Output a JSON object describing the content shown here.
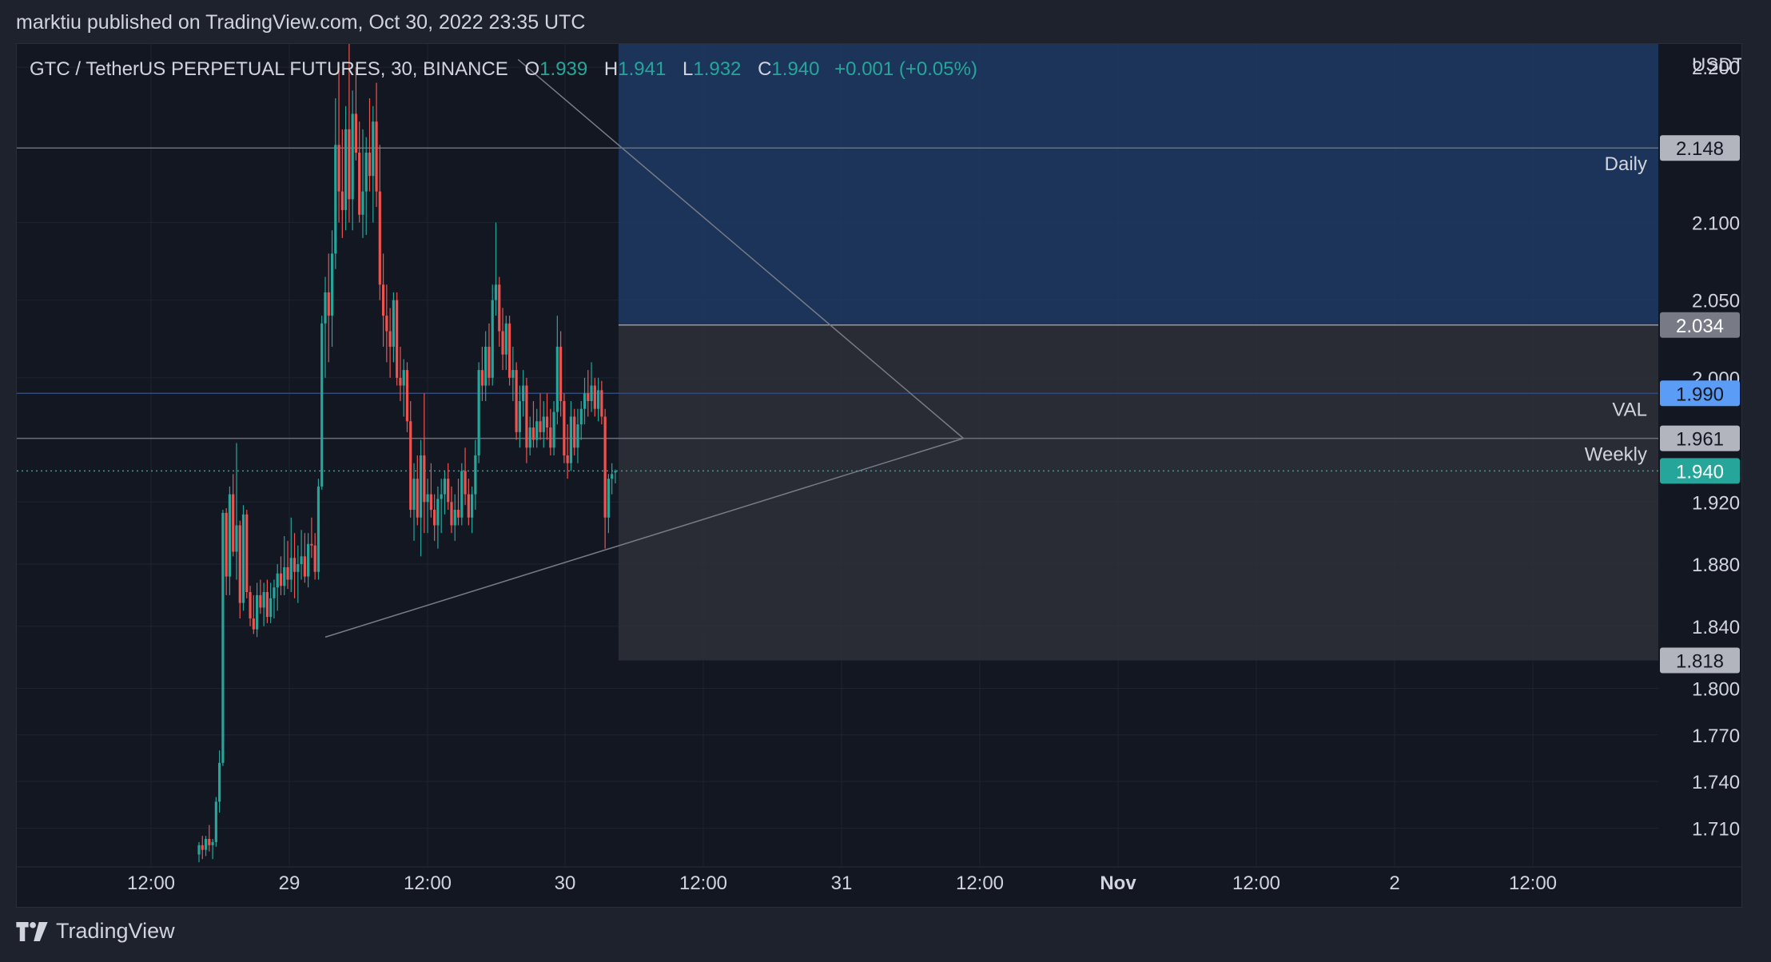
{
  "header": {
    "published_by": "marktiu published on TradingView.com, Oct 30, 2022 23:35 UTC"
  },
  "legend": {
    "symbol": "GTC / TetherUS PERPETUAL FUTURES, 30, BINANCE",
    "o_label": "O",
    "o_value": "1.939",
    "h_label": "H",
    "h_value": "1.941",
    "l_label": "L",
    "l_value": "1.932",
    "c_label": "C",
    "c_value": "1.940",
    "change": "+0.001 (+0.05%)"
  },
  "footer": {
    "brand": "TradingView"
  },
  "colors": {
    "up": "#26a69a",
    "down": "#ef5350",
    "background": "#131722",
    "grid": "#1f2330",
    "text": "#d1d4dc",
    "zone_blue": "#1f3a63",
    "zone_gray": "#2e3038",
    "val_line": "#2962ff"
  },
  "chart_data": {
    "type": "candlestick",
    "title": "GTC / TetherUS PERPETUAL FUTURES, 30, BINANCE",
    "currency_label": "USDT",
    "x_ticks": [
      "12:00",
      "29",
      "12:00",
      "30",
      "12:00",
      "31",
      "12:00",
      "Nov",
      "12:00",
      "2",
      "12:00"
    ],
    "y_ticks": [
      "2.200",
      "2.100",
      "2.050",
      "2.000",
      "1.920",
      "1.880",
      "1.840",
      "1.800",
      "1.770",
      "1.740",
      "1.710"
    ],
    "y_range": [
      1.685,
      2.215
    ],
    "last_price": 1.94,
    "horizontal_levels": [
      {
        "price": 2.148,
        "label": "Daily",
        "tag": "2.148"
      },
      {
        "price": 1.99,
        "label": "VAL",
        "tag": "1.990"
      },
      {
        "price": 1.961,
        "label": "Weekly",
        "tag": "1.961"
      }
    ],
    "zones": [
      {
        "name": "target-zone",
        "top": 2.23,
        "bottom": 2.034,
        "tag": "2.034"
      },
      {
        "name": "stop-zone",
        "top": 2.034,
        "bottom": 1.818,
        "tag": "1.818"
      }
    ],
    "trendlines": [
      {
        "from": [
          93.5,
          2.205
        ],
        "to": [
          224,
          1.961
        ]
      },
      {
        "from": [
          37,
          1.833
        ],
        "to": [
          224,
          1.961
        ]
      }
    ],
    "candles": [
      [
        1.693,
        1.701,
        1.688,
        1.699
      ],
      [
        1.699,
        1.705,
        1.69,
        1.696
      ],
      [
        1.696,
        1.705,
        1.692,
        1.703
      ],
      [
        1.703,
        1.712,
        1.695,
        1.699
      ],
      [
        1.699,
        1.703,
        1.69,
        1.701
      ],
      [
        1.701,
        1.73,
        1.698,
        1.727
      ],
      [
        1.727,
        1.76,
        1.72,
        1.752
      ],
      [
        1.752,
        1.915,
        1.75,
        1.913
      ],
      [
        1.913,
        1.916,
        1.86,
        1.872
      ],
      [
        1.872,
        1.93,
        1.86,
        1.925
      ],
      [
        1.925,
        1.938,
        1.885,
        1.888
      ],
      [
        1.888,
        1.958,
        1.87,
        1.905
      ],
      [
        1.905,
        1.908,
        1.845,
        1.855
      ],
      [
        1.855,
        1.918,
        1.85,
        1.912
      ],
      [
        1.912,
        1.915,
        1.858,
        1.862
      ],
      [
        1.862,
        1.866,
        1.84,
        1.845
      ],
      [
        1.845,
        1.86,
        1.835,
        1.838
      ],
      [
        1.838,
        1.868,
        1.833,
        1.86
      ],
      [
        1.86,
        1.87,
        1.848,
        1.852
      ],
      [
        1.852,
        1.868,
        1.84,
        1.862
      ],
      [
        1.862,
        1.87,
        1.842,
        1.846
      ],
      [
        1.846,
        1.868,
        1.842,
        1.858
      ],
      [
        1.858,
        1.87,
        1.845,
        1.865
      ],
      [
        1.865,
        1.88,
        1.85,
        1.874
      ],
      [
        1.874,
        1.885,
        1.86,
        1.866
      ],
      [
        1.866,
        1.898,
        1.86,
        1.878
      ],
      [
        1.878,
        1.895,
        1.864,
        1.87
      ],
      [
        1.87,
        1.91,
        1.862,
        1.884
      ],
      [
        1.884,
        1.9,
        1.858,
        1.875
      ],
      [
        1.875,
        1.892,
        1.855,
        1.88
      ],
      [
        1.88,
        1.902,
        1.87,
        1.885
      ],
      [
        1.885,
        1.9,
        1.868,
        1.872
      ],
      [
        1.872,
        1.9,
        1.865,
        1.893
      ],
      [
        1.893,
        1.91,
        1.884,
        1.892
      ],
      [
        1.892,
        1.9,
        1.87,
        1.875
      ],
      [
        1.875,
        1.935,
        1.87,
        1.93
      ],
      [
        1.93,
        2.04,
        1.928,
        2.035
      ],
      [
        2.035,
        2.065,
        2.0,
        2.055
      ],
      [
        2.055,
        2.08,
        2.01,
        2.04
      ],
      [
        2.04,
        2.095,
        2.02,
        2.08
      ],
      [
        2.08,
        2.18,
        2.07,
        2.15
      ],
      [
        2.15,
        2.2,
        2.1,
        2.12
      ],
      [
        2.12,
        2.16,
        2.09,
        2.108
      ],
      [
        2.108,
        2.175,
        2.095,
        2.16
      ],
      [
        2.16,
        2.22,
        2.1,
        2.115
      ],
      [
        2.115,
        2.185,
        2.095,
        2.17
      ],
      [
        2.17,
        2.2,
        2.14,
        2.145
      ],
      [
        2.145,
        2.165,
        2.1,
        2.105
      ],
      [
        2.105,
        2.16,
        2.09,
        2.12
      ],
      [
        2.12,
        2.155,
        2.092,
        2.145
      ],
      [
        2.145,
        2.18,
        2.12,
        2.13
      ],
      [
        2.13,
        2.175,
        2.1,
        2.165
      ],
      [
        2.165,
        2.19,
        2.11,
        2.12
      ],
      [
        2.12,
        2.15,
        2.05,
        2.06
      ],
      [
        2.06,
        2.08,
        2.02,
        2.04
      ],
      [
        2.04,
        2.06,
        2.01,
        2.03
      ],
      [
        2.03,
        2.045,
        2.0,
        2.02
      ],
      [
        2.02,
        2.055,
        2.01,
        2.05
      ],
      [
        2.05,
        2.055,
        1.995,
        2.0
      ],
      [
        2.0,
        2.02,
        1.985,
        1.995
      ],
      [
        1.995,
        2.012,
        1.975,
        2.005
      ],
      [
        2.005,
        2.01,
        1.965,
        1.972
      ],
      [
        1.972,
        1.985,
        1.91,
        1.915
      ],
      [
        1.915,
        1.945,
        1.895,
        1.935
      ],
      [
        1.935,
        1.95,
        1.905,
        1.91
      ],
      [
        1.91,
        1.96,
        1.885,
        1.95
      ],
      [
        1.95,
        1.99,
        1.9,
        1.92
      ],
      [
        1.92,
        1.935,
        1.9,
        1.925
      ],
      [
        1.925,
        1.945,
        1.91,
        1.915
      ],
      [
        1.915,
        1.925,
        1.895,
        1.905
      ],
      [
        1.905,
        1.93,
        1.89,
        1.922
      ],
      [
        1.922,
        1.935,
        1.9,
        1.925
      ],
      [
        1.925,
        1.94,
        1.912,
        1.935
      ],
      [
        1.935,
        1.945,
        1.915,
        1.92
      ],
      [
        1.92,
        1.93,
        1.9,
        1.905
      ],
      [
        1.905,
        1.925,
        1.895,
        1.915
      ],
      [
        1.915,
        1.935,
        1.905,
        1.91
      ],
      [
        1.91,
        1.945,
        1.905,
        1.94
      ],
      [
        1.94,
        1.955,
        1.918,
        1.925
      ],
      [
        1.925,
        1.935,
        1.905,
        1.91
      ],
      [
        1.91,
        1.93,
        1.9,
        1.925
      ],
      [
        1.925,
        1.96,
        1.915,
        1.95
      ],
      [
        1.95,
        2.01,
        1.945,
        2.005
      ],
      [
        2.005,
        2.02,
        1.985,
        1.995
      ],
      [
        1.995,
        2.03,
        1.985,
        2.02
      ],
      [
        2.02,
        2.035,
        1.995,
        2.0
      ],
      [
        2.0,
        2.06,
        1.995,
        2.05
      ],
      [
        2.05,
        2.1,
        2.04,
        2.06
      ],
      [
        2.06,
        2.065,
        2.02,
        2.03
      ],
      [
        2.03,
        2.045,
        2.005,
        2.015
      ],
      [
        2.015,
        2.04,
        2.005,
        2.035
      ],
      [
        2.035,
        2.04,
        1.995,
        2.0
      ],
      [
        2.0,
        2.02,
        1.985,
        2.005
      ],
      [
        2.005,
        2.01,
        1.96,
        1.965
      ],
      [
        1.965,
        1.995,
        1.955,
        1.985
      ],
      [
        1.985,
        2.005,
        1.975,
        1.995
      ],
      [
        1.995,
        2.0,
        1.945,
        1.955
      ],
      [
        1.955,
        1.975,
        1.95,
        1.968
      ],
      [
        1.968,
        1.985,
        1.955,
        1.96
      ],
      [
        1.96,
        1.98,
        1.955,
        1.972
      ],
      [
        1.972,
        1.99,
        1.96,
        1.965
      ],
      [
        1.965,
        1.985,
        1.955,
        1.975
      ],
      [
        1.975,
        1.99,
        1.96,
        1.968
      ],
      [
        1.968,
        1.98,
        1.95,
        1.955
      ],
      [
        1.955,
        1.985,
        1.95,
        1.978
      ],
      [
        1.978,
        2.04,
        1.97,
        2.02
      ],
      [
        2.02,
        2.03,
        1.975,
        1.985
      ],
      [
        1.985,
        1.99,
        1.945,
        1.95
      ],
      [
        1.95,
        1.97,
        1.935,
        1.945
      ],
      [
        1.945,
        1.985,
        1.94,
        1.975
      ],
      [
        1.975,
        1.98,
        1.95,
        1.955
      ],
      [
        1.955,
        1.98,
        1.945,
        1.97
      ],
      [
        1.97,
        1.985,
        1.96,
        1.98
      ],
      [
        1.98,
        2.0,
        1.97,
        1.99
      ],
      [
        1.99,
        2.005,
        1.975,
        1.985
      ],
      [
        1.985,
        2.01,
        1.978,
        1.995
      ],
      [
        1.995,
        2.0,
        1.975,
        1.98
      ],
      [
        1.98,
        2.0,
        1.972,
        1.992
      ],
      [
        1.992,
        1.998,
        1.97,
        1.975
      ],
      [
        1.975,
        1.98,
        1.89,
        1.91
      ],
      [
        1.91,
        1.938,
        1.9,
        1.935
      ],
      [
        1.935,
        1.945,
        1.925,
        1.938
      ],
      [
        1.939,
        1.941,
        1.932,
        1.94
      ]
    ]
  }
}
